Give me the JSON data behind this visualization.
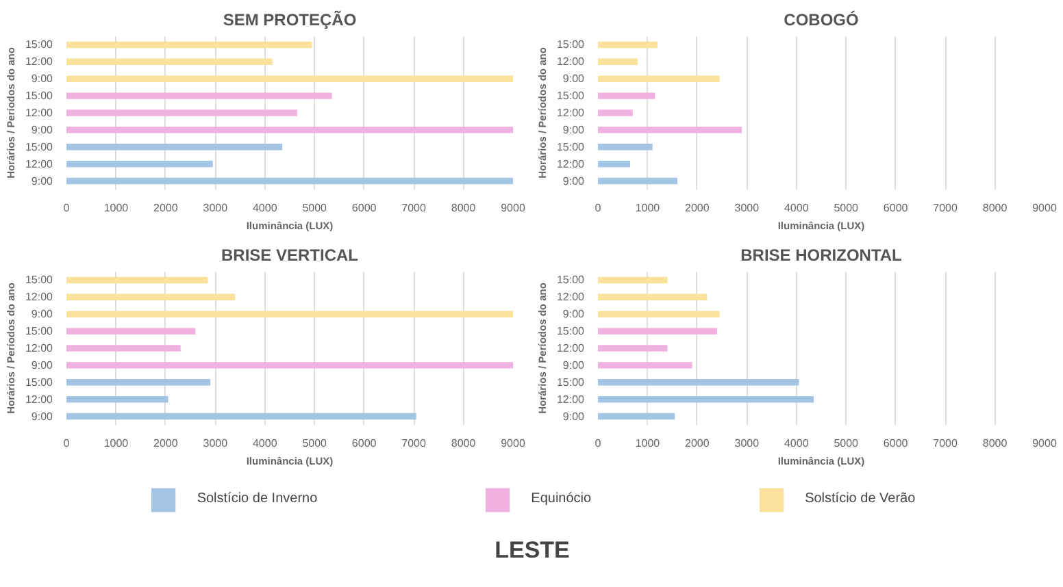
{
  "chart_data": [
    {
      "type": "bar",
      "orientation": "horizontal",
      "title": "SEM PROTEÇÃO",
      "xlabel": "Iluminância (LUX)",
      "ylabel": "Horários / Períodos do ano",
      "categories": [
        "15:00",
        "12:00",
        "9:00",
        "15:00",
        "12:00",
        "9:00",
        "15:00",
        "12:00",
        "9:00"
      ],
      "xlim": [
        0,
        9000
      ],
      "xticks": [
        0,
        1000,
        2000,
        3000,
        4000,
        5000,
        6000,
        7000,
        8000,
        9000
      ],
      "grid": "x",
      "series": [
        {
          "color": "#a3c4e4",
          "values": [
            null,
            null,
            null,
            null,
            null,
            null,
            4350,
            2950,
            9000
          ]
        },
        {
          "color": "#f0b0e0",
          "values": [
            null,
            null,
            null,
            5350,
            4650,
            9000,
            null,
            null,
            null
          ]
        },
        {
          "color": "#fbe29a",
          "values": [
            4950,
            4150,
            9000,
            null,
            null,
            null,
            null,
            null,
            null
          ]
        }
      ]
    },
    {
      "type": "bar",
      "orientation": "horizontal",
      "title": "COBOGÓ",
      "xlabel": "Iluminância (LUX)",
      "ylabel": "Horários / Períodos do ano",
      "categories": [
        "15:00",
        "12:00",
        "9:00",
        "15:00",
        "12:00",
        "9:00",
        "15:00",
        "12:00",
        "9:00"
      ],
      "xlim": [
        0,
        9000
      ],
      "xticks": [
        0,
        1000,
        2000,
        3000,
        4000,
        5000,
        6000,
        7000,
        8000,
        9000
      ],
      "grid": "x",
      "series": [
        {
          "color": "#a3c4e4",
          "values": [
            null,
            null,
            null,
            null,
            null,
            null,
            1100,
            650,
            1600
          ]
        },
        {
          "color": "#f0b0e0",
          "values": [
            null,
            null,
            null,
            1150,
            700,
            2900,
            null,
            null,
            null
          ]
        },
        {
          "color": "#fbe29a",
          "values": [
            1200,
            800,
            2450,
            null,
            null,
            null,
            null,
            null,
            null
          ]
        }
      ]
    },
    {
      "type": "bar",
      "orientation": "horizontal",
      "title": "BRISE VERTICAL",
      "xlabel": "Iluminância (LUX)",
      "ylabel": "Horários / Períodos do ano",
      "categories": [
        "15:00",
        "12:00",
        "9:00",
        "15:00",
        "12:00",
        "9:00",
        "15:00",
        "12:00",
        "9:00"
      ],
      "xlim": [
        0,
        9000
      ],
      "xticks": [
        0,
        1000,
        2000,
        3000,
        4000,
        5000,
        6000,
        7000,
        8000,
        9000
      ],
      "grid": "x",
      "series": [
        {
          "color": "#a3c4e4",
          "values": [
            null,
            null,
            null,
            null,
            null,
            null,
            2900,
            2050,
            7050
          ]
        },
        {
          "color": "#f0b0e0",
          "values": [
            null,
            null,
            null,
            2600,
            2300,
            9000,
            null,
            null,
            null
          ]
        },
        {
          "color": "#fbe29a",
          "values": [
            2850,
            3400,
            9000,
            null,
            null,
            null,
            null,
            null,
            null
          ]
        }
      ]
    },
    {
      "type": "bar",
      "orientation": "horizontal",
      "title": "BRISE HORIZONTAL",
      "xlabel": "Iluminância (LUX)",
      "ylabel": "Horários / Períodos do ano",
      "categories": [
        "15:00",
        "12:00",
        "9:00",
        "15:00",
        "12:00",
        "9:00",
        "15:00",
        "12:00",
        "9:00"
      ],
      "xlim": [
        0,
        9000
      ],
      "xticks": [
        0,
        1000,
        2000,
        3000,
        4000,
        5000,
        6000,
        7000,
        8000,
        9000
      ],
      "grid": "x",
      "legend": "bottom",
      "annotations": [
        "LESTE"
      ],
      "series": [
        {
          "name": "Solstício de Inverno",
          "color": "#a3c4e4",
          "values": [
            null,
            null,
            null,
            null,
            null,
            null,
            4050,
            4350,
            1550
          ]
        },
        {
          "name": "Equinócio",
          "color": "#f0b0e0",
          "values": [
            null,
            null,
            null,
            2400,
            1400,
            1900,
            null,
            null,
            null
          ]
        },
        {
          "name": "Solstício de Verão",
          "color": "#fbe29a",
          "values": [
            1400,
            2200,
            2450,
            null,
            null,
            null,
            null,
            null,
            null
          ]
        }
      ]
    }
  ]
}
